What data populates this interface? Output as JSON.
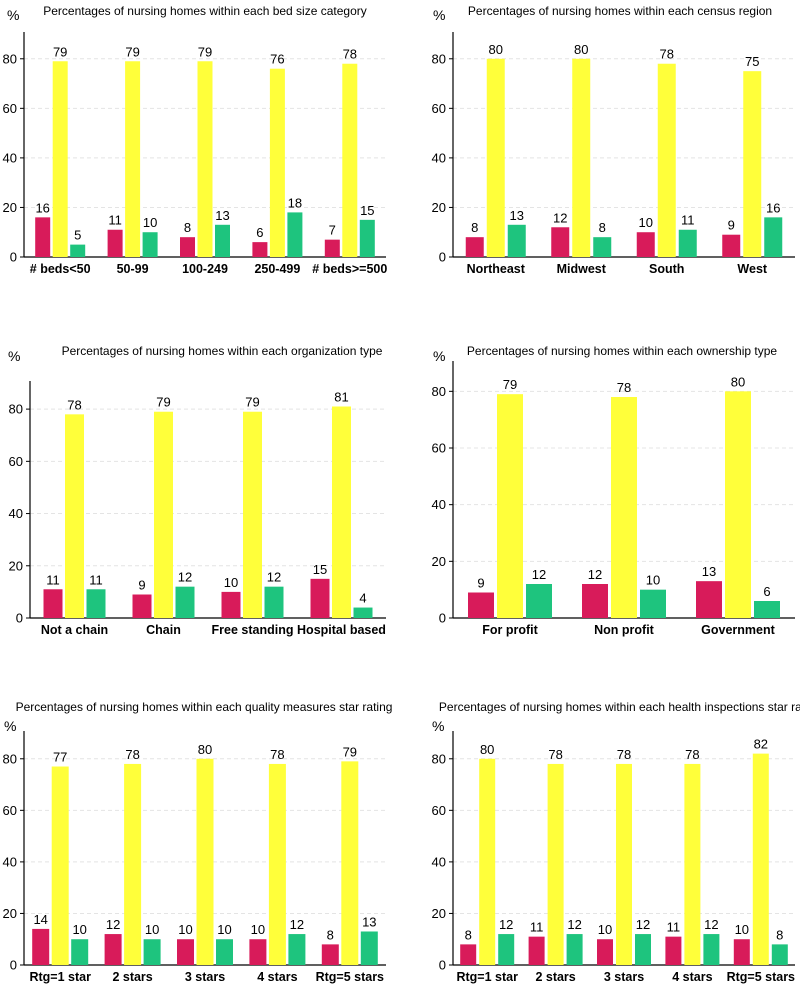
{
  "colors": {
    "red": "#d81b5a",
    "yellow": "#ffff3a",
    "green": "#1ec47e",
    "axis": "#000000",
    "grid": "#e4e4e4"
  },
  "y_axis_unit": "%",
  "chart_data": [
    {
      "type": "bar",
      "title": "Percentages of nursing homes within each bed size category",
      "categories": [
        "# beds<50",
        "50-99",
        "100-249",
        "250-499",
        "# beds>=500"
      ],
      "series": [
        {
          "name": "series-1",
          "color": "red",
          "values": [
            16,
            11,
            8,
            6,
            7
          ]
        },
        {
          "name": "series-2",
          "color": "yellow",
          "values": [
            79,
            79,
            79,
            76,
            78
          ]
        },
        {
          "name": "series-3",
          "color": "green",
          "values": [
            5,
            10,
            13,
            18,
            15
          ]
        }
      ],
      "ylim": [
        0,
        90
      ],
      "yticks": [
        0,
        20,
        40,
        60,
        80
      ],
      "ylabel": "%",
      "grid": true
    },
    {
      "type": "bar",
      "title": "Percentages of nursing homes within each census region",
      "categories": [
        "Northeast",
        "Midwest",
        "South",
        "West"
      ],
      "series": [
        {
          "name": "series-1",
          "color": "red",
          "values": [
            8,
            12,
            10,
            9
          ]
        },
        {
          "name": "series-2",
          "color": "yellow",
          "values": [
            80,
            80,
            78,
            75
          ]
        },
        {
          "name": "series-3",
          "color": "green",
          "values": [
            13,
            8,
            11,
            16
          ]
        }
      ],
      "ylim": [
        0,
        90
      ],
      "yticks": [
        0,
        20,
        40,
        60,
        80
      ],
      "ylabel": "%",
      "grid": true
    },
    {
      "type": "bar",
      "title": "Percentages of nursing homes within each organization type",
      "categories": [
        "Not a chain",
        "Chain",
        "Free standing",
        "Hospital based"
      ],
      "series": [
        {
          "name": "series-1",
          "color": "red",
          "values": [
            11,
            9,
            10,
            15
          ]
        },
        {
          "name": "series-2",
          "color": "yellow",
          "values": [
            78,
            79,
            79,
            81
          ]
        },
        {
          "name": "series-3",
          "color": "green",
          "values": [
            11,
            12,
            12,
            4
          ]
        }
      ],
      "ylim": [
        0,
        90
      ],
      "yticks": [
        0,
        20,
        40,
        60,
        80
      ],
      "ylabel": "%",
      "grid": true
    },
    {
      "type": "bar",
      "title": "Percentages of nursing homes within each ownership type",
      "categories": [
        "For profit",
        "Non profit",
        "Government"
      ],
      "series": [
        {
          "name": "series-1",
          "color": "red",
          "values": [
            9,
            12,
            13
          ]
        },
        {
          "name": "series-2",
          "color": "yellow",
          "values": [
            79,
            78,
            80
          ]
        },
        {
          "name": "series-3",
          "color": "green",
          "values": [
            12,
            10,
            6
          ]
        }
      ],
      "ylim": [
        0,
        90
      ],
      "yticks": [
        0,
        20,
        40,
        60,
        80
      ],
      "ylabel": "%",
      "grid": true
    },
    {
      "type": "bar",
      "title": "Percentages of nursing homes within each quality measures star rating",
      "categories": [
        "Rtg=1 star",
        "2 stars",
        "3 stars",
        "4 stars",
        "Rtg=5 stars"
      ],
      "series": [
        {
          "name": "series-1",
          "color": "red",
          "values": [
            14,
            12,
            10,
            10,
            8
          ]
        },
        {
          "name": "series-2",
          "color": "yellow",
          "values": [
            77,
            78,
            80,
            78,
            79
          ]
        },
        {
          "name": "series-3",
          "color": "green",
          "values": [
            10,
            10,
            10,
            12,
            13
          ]
        }
      ],
      "ylim": [
        0,
        90
      ],
      "yticks": [
        0,
        20,
        40,
        60,
        80
      ],
      "ylabel": "%",
      "grid": true
    },
    {
      "type": "bar",
      "title": "Percentages of nursing homes within each health inspections star rating",
      "categories": [
        "Rtg=1 star",
        "2 stars",
        "3 stars",
        "4 stars",
        "Rtg=5 stars"
      ],
      "series": [
        {
          "name": "series-1",
          "color": "red",
          "values": [
            8,
            11,
            10,
            11,
            10
          ]
        },
        {
          "name": "series-2",
          "color": "yellow",
          "values": [
            80,
            78,
            78,
            78,
            82
          ]
        },
        {
          "name": "series-3",
          "color": "green",
          "values": [
            12,
            12,
            12,
            12,
            8
          ]
        }
      ],
      "ylim": [
        0,
        90
      ],
      "yticks": [
        0,
        20,
        40,
        60,
        80
      ],
      "ylabel": "%",
      "grid": true
    }
  ]
}
